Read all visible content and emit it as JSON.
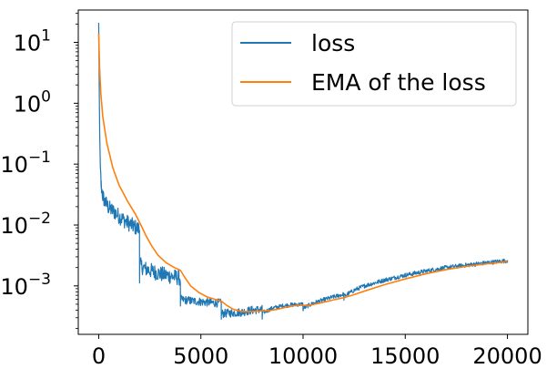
{
  "chart_data": {
    "type": "line",
    "title": "",
    "xlabel": "",
    "ylabel": "",
    "xlim": [
      -1000,
      21000
    ],
    "ylim": [
      0.00016,
      34
    ],
    "yscale": "log",
    "xticks": [
      {
        "value": 0,
        "label": "0"
      },
      {
        "value": 5000,
        "label": "5000"
      },
      {
        "value": 10000,
        "label": "10000"
      },
      {
        "value": 15000,
        "label": "15000"
      },
      {
        "value": 20000,
        "label": "20000"
      }
    ],
    "yticks": [
      {
        "value": 10,
        "base": "10",
        "exp": "1"
      },
      {
        "value": 1,
        "base": "10",
        "exp": "0"
      },
      {
        "value": 0.1,
        "base": "10",
        "exp": "−1"
      },
      {
        "value": 0.01,
        "base": "10",
        "exp": "−2"
      },
      {
        "value": 0.001,
        "base": "10",
        "exp": "−3"
      }
    ],
    "legend": {
      "placement": "top-right"
    },
    "grid": false,
    "series": [
      {
        "name": "loss",
        "color": "#1f77b4",
        "noisy": true,
        "points": [
          [
            0,
            21
          ],
          [
            15,
            5
          ],
          [
            30,
            1.2
          ],
          [
            50,
            0.3
          ],
          [
            80,
            0.09
          ],
          [
            120,
            0.045
          ],
          [
            200,
            0.03
          ],
          [
            300,
            0.024
          ],
          [
            500,
            0.019
          ],
          [
            800,
            0.016
          ],
          [
            1100,
            0.013
          ],
          [
            1400,
            0.011
          ],
          [
            1700,
            0.0095
          ],
          [
            1995,
            0.0085
          ],
          [
            2000,
            0.0015
          ],
          [
            2010,
            0.0022
          ],
          [
            2300,
            0.0019
          ],
          [
            2700,
            0.0017
          ],
          [
            3100,
            0.00155
          ],
          [
            3500,
            0.00145
          ],
          [
            3995,
            0.00135
          ],
          [
            4000,
            0.0005
          ],
          [
            4010,
            0.0006
          ],
          [
            4500,
            0.00057
          ],
          [
            5000,
            0.00055
          ],
          [
            5500,
            0.00053
          ],
          [
            5995,
            0.00052
          ],
          [
            6000,
            0.00032
          ],
          [
            6010,
            0.00035
          ],
          [
            6500,
            0.00036
          ],
          [
            7000,
            0.00037
          ],
          [
            7500,
            0.0004
          ],
          [
            7995,
            0.00041
          ],
          [
            8000,
            0.00029
          ],
          [
            8010,
            0.00036
          ],
          [
            8500,
            0.00043
          ],
          [
            9000,
            0.00047
          ],
          [
            9500,
            0.00049
          ],
          [
            9995,
            0.0005
          ],
          [
            10000,
            0.00038
          ],
          [
            10010,
            0.00043
          ],
          [
            10500,
            0.00052
          ],
          [
            11000,
            0.00059
          ],
          [
            11500,
            0.00066
          ],
          [
            11995,
            0.00073
          ],
          [
            12000,
            0.00062
          ],
          [
            12010,
            0.00068
          ],
          [
            12500,
            0.00085
          ],
          [
            13000,
            0.001
          ],
          [
            14000,
            0.00125
          ],
          [
            15000,
            0.0015
          ],
          [
            16000,
            0.00175
          ],
          [
            17000,
            0.002
          ],
          [
            18000,
            0.0022
          ],
          [
            19000,
            0.0024
          ],
          [
            20000,
            0.0026
          ]
        ]
      },
      {
        "name": "EMA of the loss",
        "color": "#ff7f0e",
        "noisy": false,
        "points": [
          [
            0,
            14
          ],
          [
            40,
            4
          ],
          [
            100,
            1.5
          ],
          [
            200,
            0.6
          ],
          [
            400,
            0.22
          ],
          [
            700,
            0.085
          ],
          [
            1000,
            0.045
          ],
          [
            1400,
            0.025
          ],
          [
            1800,
            0.015
          ],
          [
            2100,
            0.0095
          ],
          [
            2300,
            0.0068
          ],
          [
            2600,
            0.0045
          ],
          [
            2900,
            0.0032
          ],
          [
            3300,
            0.0024
          ],
          [
            3700,
            0.002
          ],
          [
            4000,
            0.0018
          ],
          [
            4200,
            0.0014
          ],
          [
            4500,
            0.001
          ],
          [
            4900,
            0.00078
          ],
          [
            5300,
            0.00066
          ],
          [
            5700,
            0.0006
          ],
          [
            6000,
            0.00056
          ],
          [
            6300,
            0.00047
          ],
          [
            6600,
            0.00041
          ],
          [
            7000,
            0.00038
          ],
          [
            7500,
            0.00038
          ],
          [
            8000,
            0.00039
          ],
          [
            8300,
            0.00039
          ],
          [
            8700,
            0.00041
          ],
          [
            9200,
            0.00045
          ],
          [
            9700,
            0.00048
          ],
          [
            10000,
            0.00048
          ],
          [
            10300,
            0.00048
          ],
          [
            10800,
            0.00052
          ],
          [
            11500,
            0.00059
          ],
          [
            12000,
            0.00064
          ],
          [
            12500,
            0.00072
          ],
          [
            13000,
            0.00082
          ],
          [
            14000,
            0.00105
          ],
          [
            15000,
            0.0013
          ],
          [
            16000,
            0.00158
          ],
          [
            17000,
            0.00185
          ],
          [
            18000,
            0.0021
          ],
          [
            19000,
            0.0023
          ],
          [
            20000,
            0.0025
          ]
        ]
      }
    ]
  }
}
